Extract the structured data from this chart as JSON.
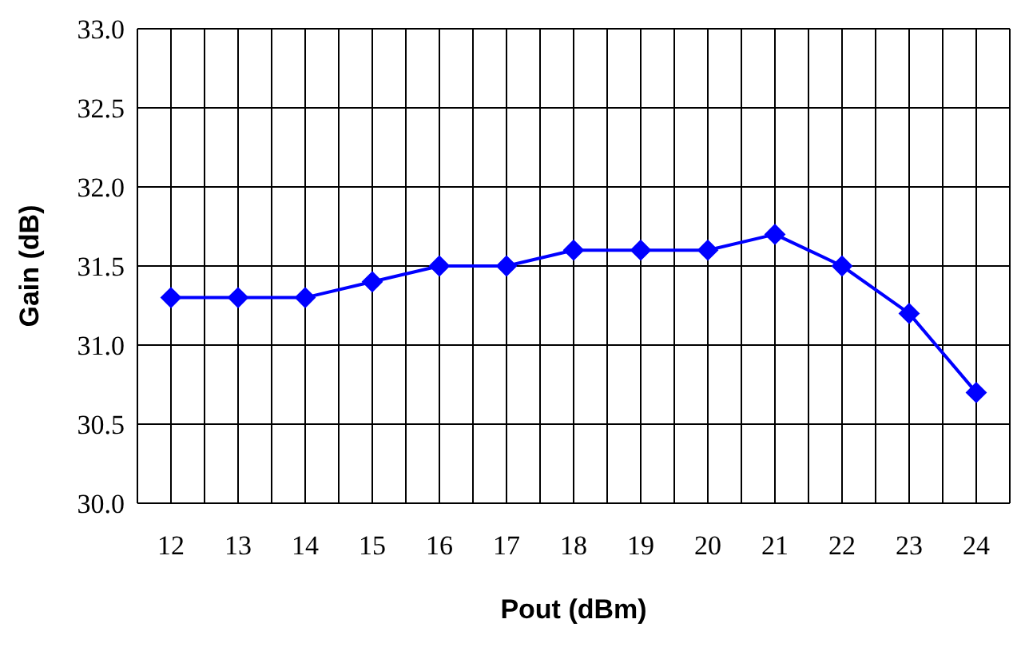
{
  "chart_data": {
    "type": "line",
    "xlabel": "Pout (dBm)",
    "ylabel": "Gain (dB)",
    "x": [
      12,
      13,
      14,
      15,
      16,
      17,
      18,
      19,
      20,
      21,
      22,
      23,
      24
    ],
    "series": [
      {
        "color": "#0000ff",
        "values": [
          31.3,
          31.3,
          31.3,
          31.4,
          31.5,
          31.5,
          31.6,
          31.6,
          31.6,
          31.7,
          31.5,
          31.2,
          30.7
        ]
      }
    ],
    "xlim": [
      11.5,
      24.5
    ],
    "xticks": [
      {
        "value": 11.5,
        "label": null
      },
      12,
      {
        "value": 12.5,
        "label": null
      },
      13,
      {
        "value": 13.5,
        "label": null
      },
      14,
      {
        "value": 14.5,
        "label": null
      },
      15,
      {
        "value": 15.5,
        "label": null
      },
      16,
      {
        "value": 16.5,
        "label": null
      },
      17,
      {
        "value": 17.5,
        "label": null
      },
      18,
      {
        "value": 18.5,
        "label": null
      },
      19,
      {
        "value": 19.5,
        "label": null
      },
      20,
      {
        "value": 20.5,
        "label": null
      },
      21,
      {
        "value": 21.5,
        "label": null
      },
      22,
      {
        "value": 22.5,
        "label": null
      },
      23,
      {
        "value": 23.5,
        "label": null
      },
      24,
      {
        "value": 24.5,
        "label": null
      }
    ],
    "ylim": [
      30,
      33
    ],
    "yticks": [
      {
        "value": 30,
        "label": "30.0"
      },
      {
        "value": 30.5,
        "label": "30.5"
      },
      {
        "value": 31,
        "label": "31.0"
      },
      {
        "value": 31.5,
        "label": "31.5"
      },
      {
        "value": 32,
        "label": "32.0"
      },
      {
        "value": 32.5,
        "label": "32.5"
      },
      {
        "value": 33,
        "label": "33.0"
      }
    ],
    "grid": true,
    "marker": "diamond",
    "line_style": "solid"
  }
}
